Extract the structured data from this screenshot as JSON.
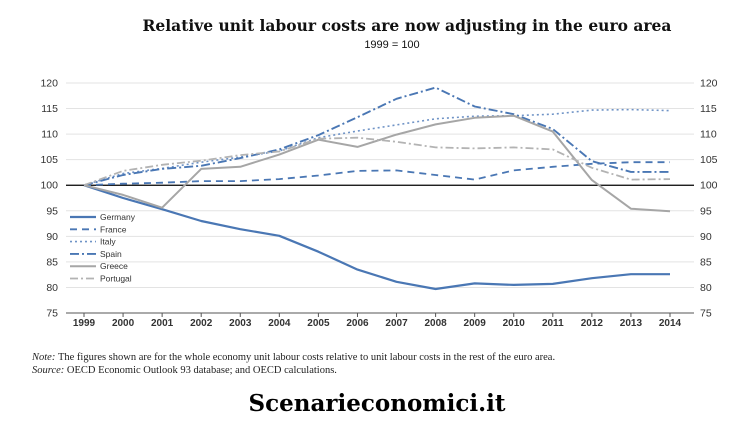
{
  "chart_data": {
    "type": "line",
    "title": "Relative unit labour costs are now adjusting in the euro area",
    "subtitle": "1999 = 100",
    "x": [
      "1999",
      "2000",
      "2001",
      "2002",
      "2003",
      "2004",
      "2005",
      "2006",
      "2007",
      "2008",
      "2009",
      "2010",
      "2011",
      "2012",
      "2013",
      "2014"
    ],
    "ylim": [
      75,
      120
    ],
    "yticks": [
      75,
      80,
      85,
      90,
      95,
      100,
      105,
      110,
      115,
      120
    ],
    "legend_position": "bottom-left",
    "series": [
      {
        "name": "Germany",
        "color": "#4a77b4",
        "dash": "solid",
        "width": 2.2,
        "values": [
          100,
          97.5,
          95.3,
          93.0,
          91.4,
          90.1,
          87.0,
          83.5,
          81.1,
          79.7,
          80.8,
          80.5,
          80.7,
          81.8,
          82.6,
          82.6
        ]
      },
      {
        "name": "France",
        "color": "#4a77b4",
        "dash": "7,5",
        "width": 1.8,
        "values": [
          100,
          100.3,
          100.5,
          100.8,
          100.8,
          101.2,
          101.9,
          102.8,
          102.9,
          102.0,
          101.1,
          102.9,
          103.6,
          104.2,
          104.5,
          104.5
        ]
      },
      {
        "name": "Italy",
        "color": "#6f93c6",
        "dash": "2,3",
        "width": 1.6,
        "values": [
          100,
          102.3,
          103.3,
          104.5,
          105.5,
          106.7,
          109.3,
          110.6,
          111.8,
          113.0,
          113.5,
          113.6,
          113.9,
          114.7,
          114.8,
          114.6
        ]
      },
      {
        "name": "Spain",
        "color": "#4a77b4",
        "dash": "9,3,2,3",
        "width": 1.9,
        "values": [
          100,
          102.0,
          103.2,
          103.8,
          105.3,
          107.0,
          109.8,
          113.3,
          116.9,
          119.1,
          115.4,
          113.9,
          111.0,
          104.7,
          102.6,
          102.6
        ]
      },
      {
        "name": "Greece",
        "color": "#a6a6a6",
        "dash": "solid",
        "width": 2.0,
        "values": [
          100,
          98.1,
          95.6,
          103.2,
          103.6,
          106.0,
          108.9,
          107.5,
          109.9,
          111.9,
          113.2,
          113.6,
          110.5,
          101.0,
          95.4,
          94.9
        ]
      },
      {
        "name": "Portugal",
        "color": "#b3b3b3",
        "dash": "8,3,2,3",
        "width": 1.8,
        "values": [
          100,
          102.8,
          104.0,
          104.8,
          105.9,
          106.6,
          109.1,
          109.3,
          108.5,
          107.4,
          107.2,
          107.4,
          107.0,
          103.4,
          101.1,
          101.2
        ]
      }
    ]
  },
  "footnote": {
    "note_label": "Note:",
    "note_text": "The figures shown are for the whole economy unit labour costs relative to unit labour costs in the rest of the euro area.",
    "source_label": "Source:",
    "source_text": "OECD Economic Outlook 93 database; and OECD calculations."
  },
  "watermark": "Scenarieconomici.it"
}
